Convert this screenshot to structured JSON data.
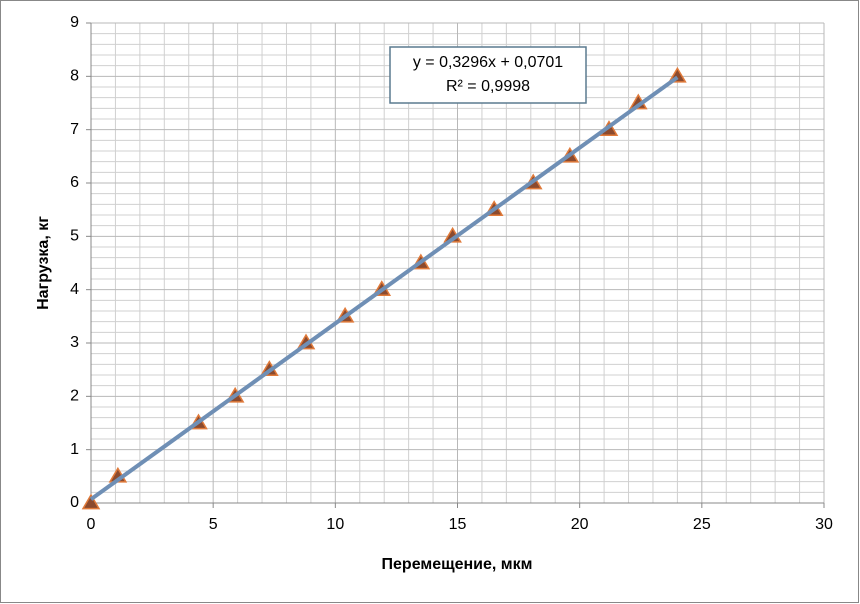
{
  "chart_data": {
    "type": "scatter",
    "xlabel": "Перемещение, мкм",
    "ylabel": "Нагрузка, кг",
    "annotations": [
      "y = 0,3296x + 0,0701",
      "R² = 0,9998"
    ],
    "series": [
      {
        "color": "#c0504d",
        "x": [
          0,
          1.1,
          4.4,
          5.9,
          7.3,
          8.8,
          10.4,
          11.9,
          13.5,
          14.8,
          16.5,
          18.1,
          19.6,
          21.2,
          22.4,
          24
        ],
        "values": [
          0,
          0.5,
          1.5,
          2,
          2.5,
          3,
          3.5,
          4,
          4.5,
          5,
          5.5,
          6,
          6.5,
          7,
          7.5,
          8
        ]
      }
    ],
    "trendline": {
      "slope": 0.3296,
      "intercept": 0.0701,
      "color": "#6f8fb5"
    },
    "xlim": [
      0,
      30
    ],
    "xticks": [
      0,
      5,
      10,
      15,
      20,
      25,
      30
    ],
    "ylim": [
      0,
      9
    ],
    "yticks": [
      0,
      1,
      2,
      3,
      4,
      5,
      6,
      7,
      8,
      9
    ],
    "minor_xticks": [
      1,
      2,
      3,
      4,
      6,
      7,
      8,
      9,
      11,
      12,
      13,
      14,
      16,
      17,
      18,
      19,
      21,
      22,
      23,
      24,
      26,
      27,
      28,
      29
    ],
    "minor_yticks": [
      0.2,
      0.4,
      0.6,
      0.8,
      1.2,
      1.4,
      1.6,
      1.8,
      2.2,
      2.4,
      2.6,
      2.8,
      3.2,
      3.4,
      3.6,
      3.8,
      4.2,
      4.4,
      4.6,
      4.8,
      5.2,
      5.4,
      5.6,
      5.8,
      6.2,
      6.4,
      6.6,
      6.8,
      7.2,
      7.4,
      7.6,
      7.8,
      8.2,
      8.4,
      8.6,
      8.8
    ],
    "grid": true
  }
}
